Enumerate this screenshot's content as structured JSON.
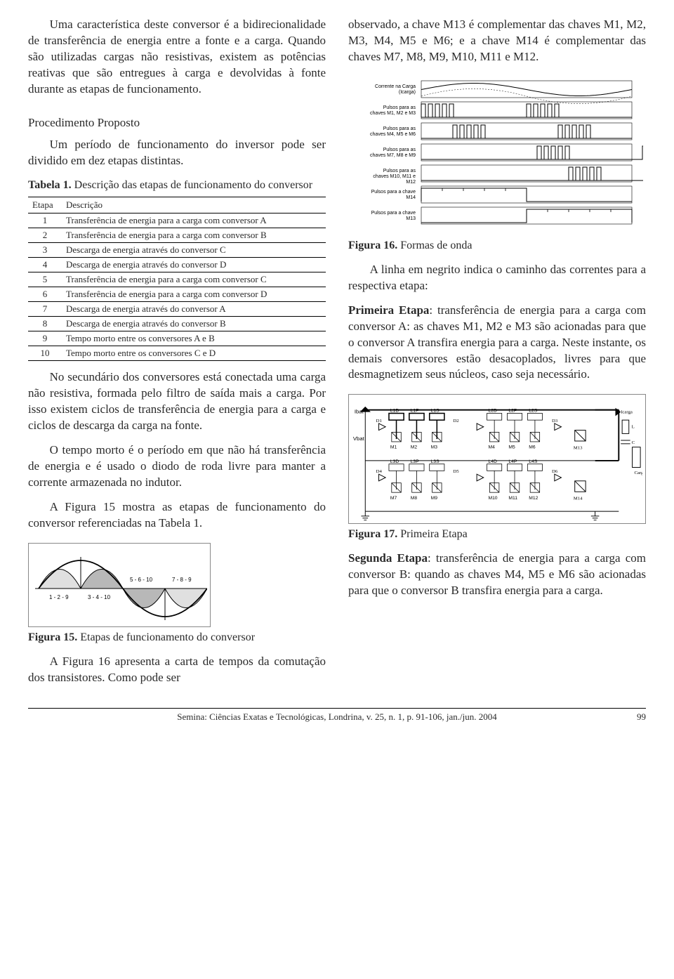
{
  "col1": {
    "p1": "Uma característica deste conversor é a bidirecionalidade de transferência de energia entre a fonte e a carga. Quando são utilizadas cargas não resistivas, existem as potências reativas que são entregues à carga e devolvidas à fonte durante as etapas de funcionamento.",
    "section_title": "Procedimento Proposto",
    "p2": "Um período de funcionamento do inversor pode ser dividido em dez etapas distintas.",
    "table_caption_b": "Tabela 1.",
    "table_caption": " Descrição das etapas de funcionamento do conversor",
    "table": {
      "head_a": "Etapa",
      "head_b": "Descrição",
      "rows": [
        {
          "n": "1",
          "d": "Transferência de energia para a carga com conversor A"
        },
        {
          "n": "2",
          "d": "Transferência de energia para a carga com conversor B"
        },
        {
          "n": "3",
          "d": "Descarga de energia através do conversor C"
        },
        {
          "n": "4",
          "d": "Descarga de energia através do conversor D"
        },
        {
          "n": "5",
          "d": "Transferência de energia para a carga com conversor C"
        },
        {
          "n": "6",
          "d": "Transferência de energia para a carga com conversor D"
        },
        {
          "n": "7",
          "d": "Descarga de energia através do conversor A"
        },
        {
          "n": "8",
          "d": "Descarga de energia através do conversor B"
        },
        {
          "n": "9",
          "d": "Tempo morto entre os conversores A e B"
        },
        {
          "n": "10",
          "d": "Tempo morto entre os conversores C e D"
        }
      ]
    },
    "p3": "No secundário dos conversores está conectada uma carga não resistiva, formada pelo filtro de saída mais a carga. Por isso existem ciclos de transferência de energia para a carga e ciclos de descarga da carga na fonte.",
    "p4": "O tempo morto é o período em que não há transferência de energia e é usado o diodo de roda livre para manter a corrente armazenada no indutor.",
    "p5": "A Figura 15 mostra as etapas de funcionamento do conversor referenciadas na Tabela 1.",
    "fig15": {
      "caption_b": "Figura 15.",
      "caption": " Etapas de funcionamento do conversor",
      "labels": [
        "1 - 2 - 9",
        "3 - 4 - 10",
        "5 - 6 - 10",
        "7 - 8 - 9"
      ],
      "fill_colors": [
        "#e0e0e0",
        "#b8b8b8",
        "#b8b8b8",
        "#e0e0e0"
      ],
      "stroke": "#000000"
    },
    "p6": "A Figura 16 apresenta a carta de tempos da comutação dos transistores. Como pode ser"
  },
  "col2": {
    "p1": "observado, a chave M13 é complementar das chaves M1, M2, M3, M4, M5 e M6; e a chave M14 é complementar das chaves M7, M8, M9, M10, M11 e M12.",
    "fig16": {
      "caption_b": "Figura 16.",
      "caption": " Formas de onda",
      "rows": [
        {
          "label": "Corrente na Carga (Icarga)",
          "type": "sine"
        },
        {
          "label": "Pulsos para as chaves M1, M2 e M3",
          "type": "pulse",
          "phase": 0
        },
        {
          "label": "Pulsos para as chaves M4, M5 e M6",
          "type": "pulse",
          "phase": 1
        },
        {
          "label": "Pulsos para as chaves M7, M8 e M9",
          "type": "pulse",
          "phase": 2
        },
        {
          "label": "Pulsos para as chaves M10, M11 e M12",
          "type": "pulse",
          "phase": 3
        },
        {
          "label": "Pulsos para a chave M14",
          "type": "block",
          "phase": 0
        },
        {
          "label": "Pulsos para a chave M13",
          "type": "block",
          "phase": 1
        }
      ],
      "stroke": "#000000"
    },
    "p2": "A linha em negrito indica o caminho das correntes para a respectiva etapa:",
    "p3b": "Primeira Etapa",
    "p3": ": transferência de energia para a carga com conversor A: as chaves M1, M2 e M3 são acionadas para que o conversor A transfira energia para a carga. Neste instante, os demais conversores estão desacoplados, livres para que desmagnetizem seus núcleos, caso seja necessário.",
    "fig17": {
      "caption_b": "Figura 17.",
      "caption": " Primeira Etapa",
      "labels_left": [
        "Ibat",
        "Vbat"
      ],
      "labels_top_row1": [
        "L1D",
        "L1P",
        "L1S",
        "L2D",
        "L2P",
        "L2S"
      ],
      "labels_top_row2": [
        "L3D",
        "L3P",
        "L3S",
        "L4D",
        "L4P",
        "L4S"
      ],
      "labels_right": [
        "Icarga",
        "L",
        "C",
        "Carga"
      ],
      "switches": [
        "D1",
        "M1",
        "M2",
        "M3",
        "D2",
        "D3",
        "M4",
        "M5",
        "M6",
        "M13",
        "D4",
        "M7",
        "M8",
        "M9",
        "D5",
        "D6",
        "M10",
        "M11",
        "M12",
        "M14"
      ]
    },
    "p4b": "Segunda Etapa",
    "p4": ": transferência de energia para a carga com conversor B: quando as chaves M4, M5 e M6 são acionadas para que o conversor B transfira energia para a carga."
  },
  "footer": {
    "center": "Semina: Ciências Exatas e Tecnológicas, Londrina, v. 25, n. 1, p. 91-106, jan./jun. 2004",
    "page": "99"
  }
}
